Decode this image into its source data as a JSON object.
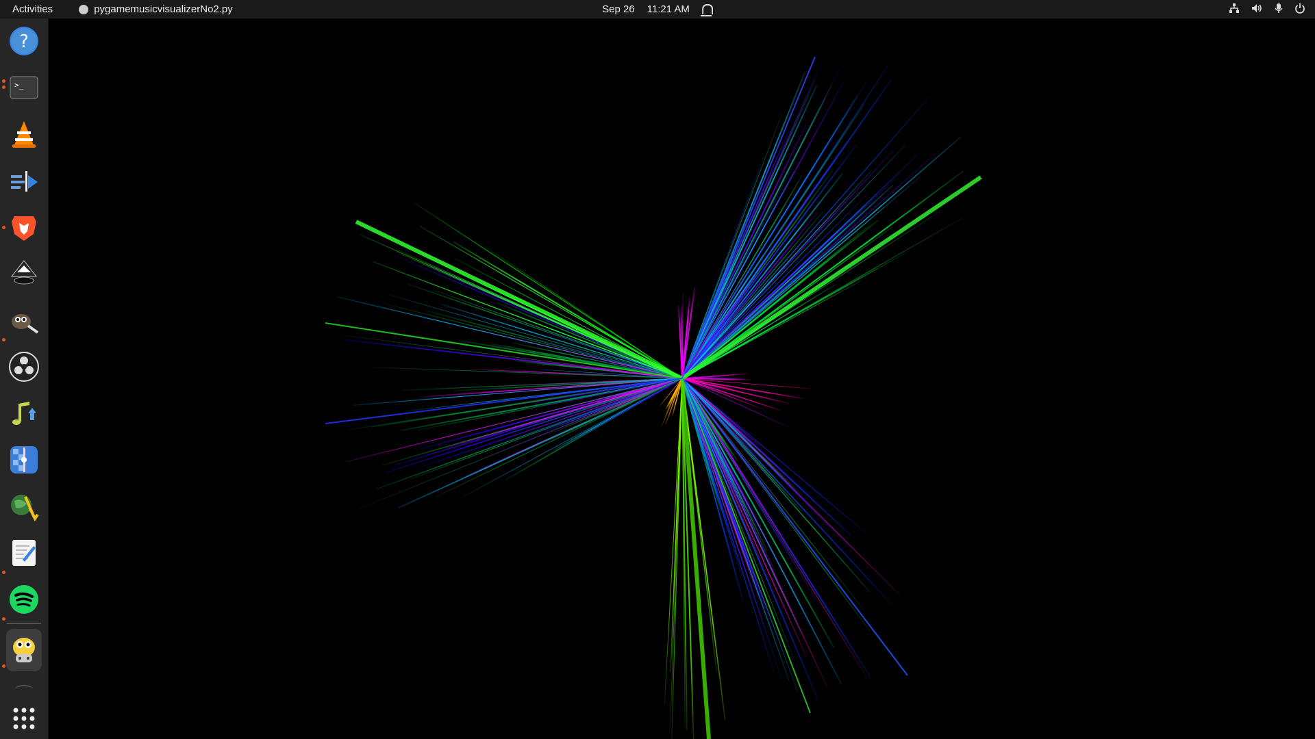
{
  "topbar": {
    "activities": "Activities",
    "app_name": "pygamemusicvisualizerNo2.py",
    "date": "Sep 26",
    "time": "11:21 AM",
    "tray_icons": [
      "network-icon",
      "volume-icon",
      "microphone-icon",
      "power-icon"
    ]
  },
  "dock": {
    "items": [
      {
        "name": "help",
        "icon": "help-icon",
        "running": false
      },
      {
        "name": "terminal",
        "icon": "terminal-icon",
        "running": true
      },
      {
        "name": "vlc",
        "icon": "vlc-cone-icon",
        "running": false
      },
      {
        "name": "kdenlive",
        "icon": "video-editor-icon",
        "running": false
      },
      {
        "name": "brave",
        "icon": "brave-lion-icon",
        "running": true
      },
      {
        "name": "inkscape",
        "icon": "inkscape-icon",
        "running": false
      },
      {
        "name": "gimp",
        "icon": "gimp-icon",
        "running": true
      },
      {
        "name": "obs",
        "icon": "obs-icon",
        "running": false
      },
      {
        "name": "music-tool",
        "icon": "music-note-icon",
        "running": false
      },
      {
        "name": "screen-tool",
        "icon": "checker-app-icon",
        "running": false
      },
      {
        "name": "qgis",
        "icon": "globe-app-icon",
        "running": false
      },
      {
        "name": "text-editor",
        "icon": "text-editor-icon",
        "running": true
      },
      {
        "name": "spotify",
        "icon": "spotify-icon",
        "running": true
      },
      {
        "name": "pygame",
        "icon": "pygame-snake-icon",
        "running": true,
        "active": true
      }
    ],
    "show_apps": "show-apps-grid-icon"
  },
  "visualizer": {
    "background": "#000000",
    "palette": [
      "#00ff00",
      "#00ccff",
      "#0033ff",
      "#ff00ff",
      "#ff8800",
      "#ffff00"
    ]
  }
}
